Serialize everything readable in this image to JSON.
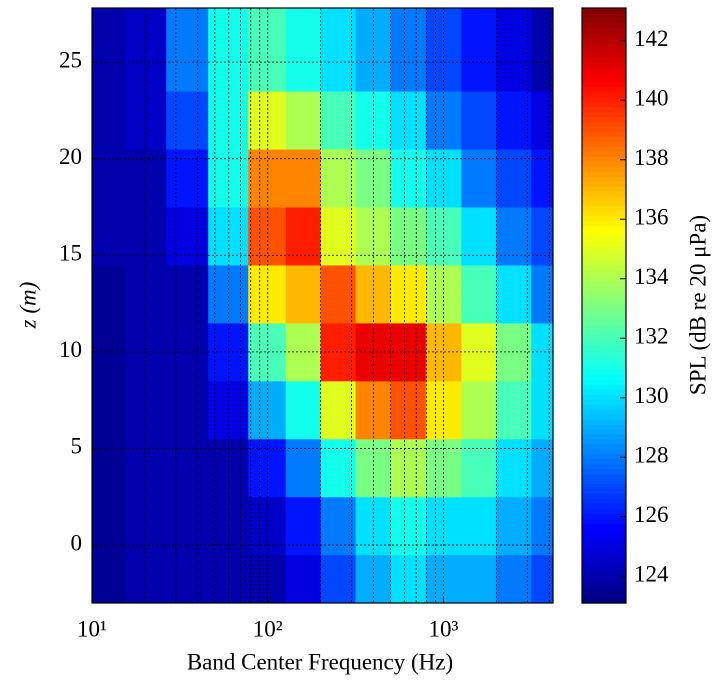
{
  "chart_data": {
    "type": "heatmap",
    "x_label": "Band Center Frequency (Hz)",
    "y_label": "z (m)",
    "colorbar_label": "SPL (dB re 20 μPa)",
    "x_scale": "log",
    "grid": true,
    "minor_grid": true,
    "colormap": "jet",
    "xlim": [
      10,
      4200
    ],
    "ylim": [
      -3,
      27.8
    ],
    "clim": [
      123.1,
      143.1
    ],
    "xticks": [
      {
        "value": 10,
        "label": "10¹"
      },
      {
        "value": 100,
        "label": "10²"
      },
      {
        "value": 1000,
        "label": "10³"
      }
    ],
    "yticks": [
      0,
      5,
      10,
      15,
      20,
      25
    ],
    "cticks": [
      124,
      126,
      128,
      130,
      132,
      134,
      136,
      138,
      140,
      142
    ],
    "x": [
      12,
      20,
      35,
      60,
      100,
      160,
      250,
      400,
      630,
      1000,
      1600,
      2500,
      4000
    ],
    "y": [
      -2,
      1,
      4,
      7,
      10,
      13,
      16,
      19,
      22,
      25
    ],
    "z": [
      [
        123.5,
        124,
        124,
        124,
        124,
        125,
        127,
        129,
        130,
        129,
        129,
        128,
        127
      ],
      [
        123.5,
        124,
        124,
        124,
        124.5,
        126,
        128,
        130,
        131,
        130,
        130,
        129,
        128
      ],
      [
        123.5,
        124,
        124,
        124,
        126,
        128,
        131,
        133,
        134,
        133,
        132,
        130,
        129
      ],
      [
        123.5,
        124,
        124,
        125,
        129,
        131,
        135,
        138,
        139,
        136,
        134,
        132,
        130
      ],
      [
        123.5,
        124,
        124,
        126,
        132,
        134,
        140,
        141,
        141,
        137,
        135,
        133,
        130
      ],
      [
        123.5,
        124,
        124,
        128,
        136,
        137,
        139,
        137,
        136,
        134,
        132,
        130,
        128
      ],
      [
        124,
        124,
        125,
        130,
        139,
        140,
        135,
        134,
        133,
        132,
        130,
        128,
        127
      ],
      [
        124,
        124,
        126,
        131,
        138,
        138,
        134,
        133,
        131,
        130,
        128,
        127,
        126
      ],
      [
        124,
        124.5,
        127,
        131,
        135,
        134,
        132,
        131,
        130,
        128,
        127,
        126,
        125
      ],
      [
        124,
        124.5,
        128,
        131,
        132,
        131,
        130,
        129,
        128,
        127,
        126,
        125,
        124
      ]
    ]
  }
}
